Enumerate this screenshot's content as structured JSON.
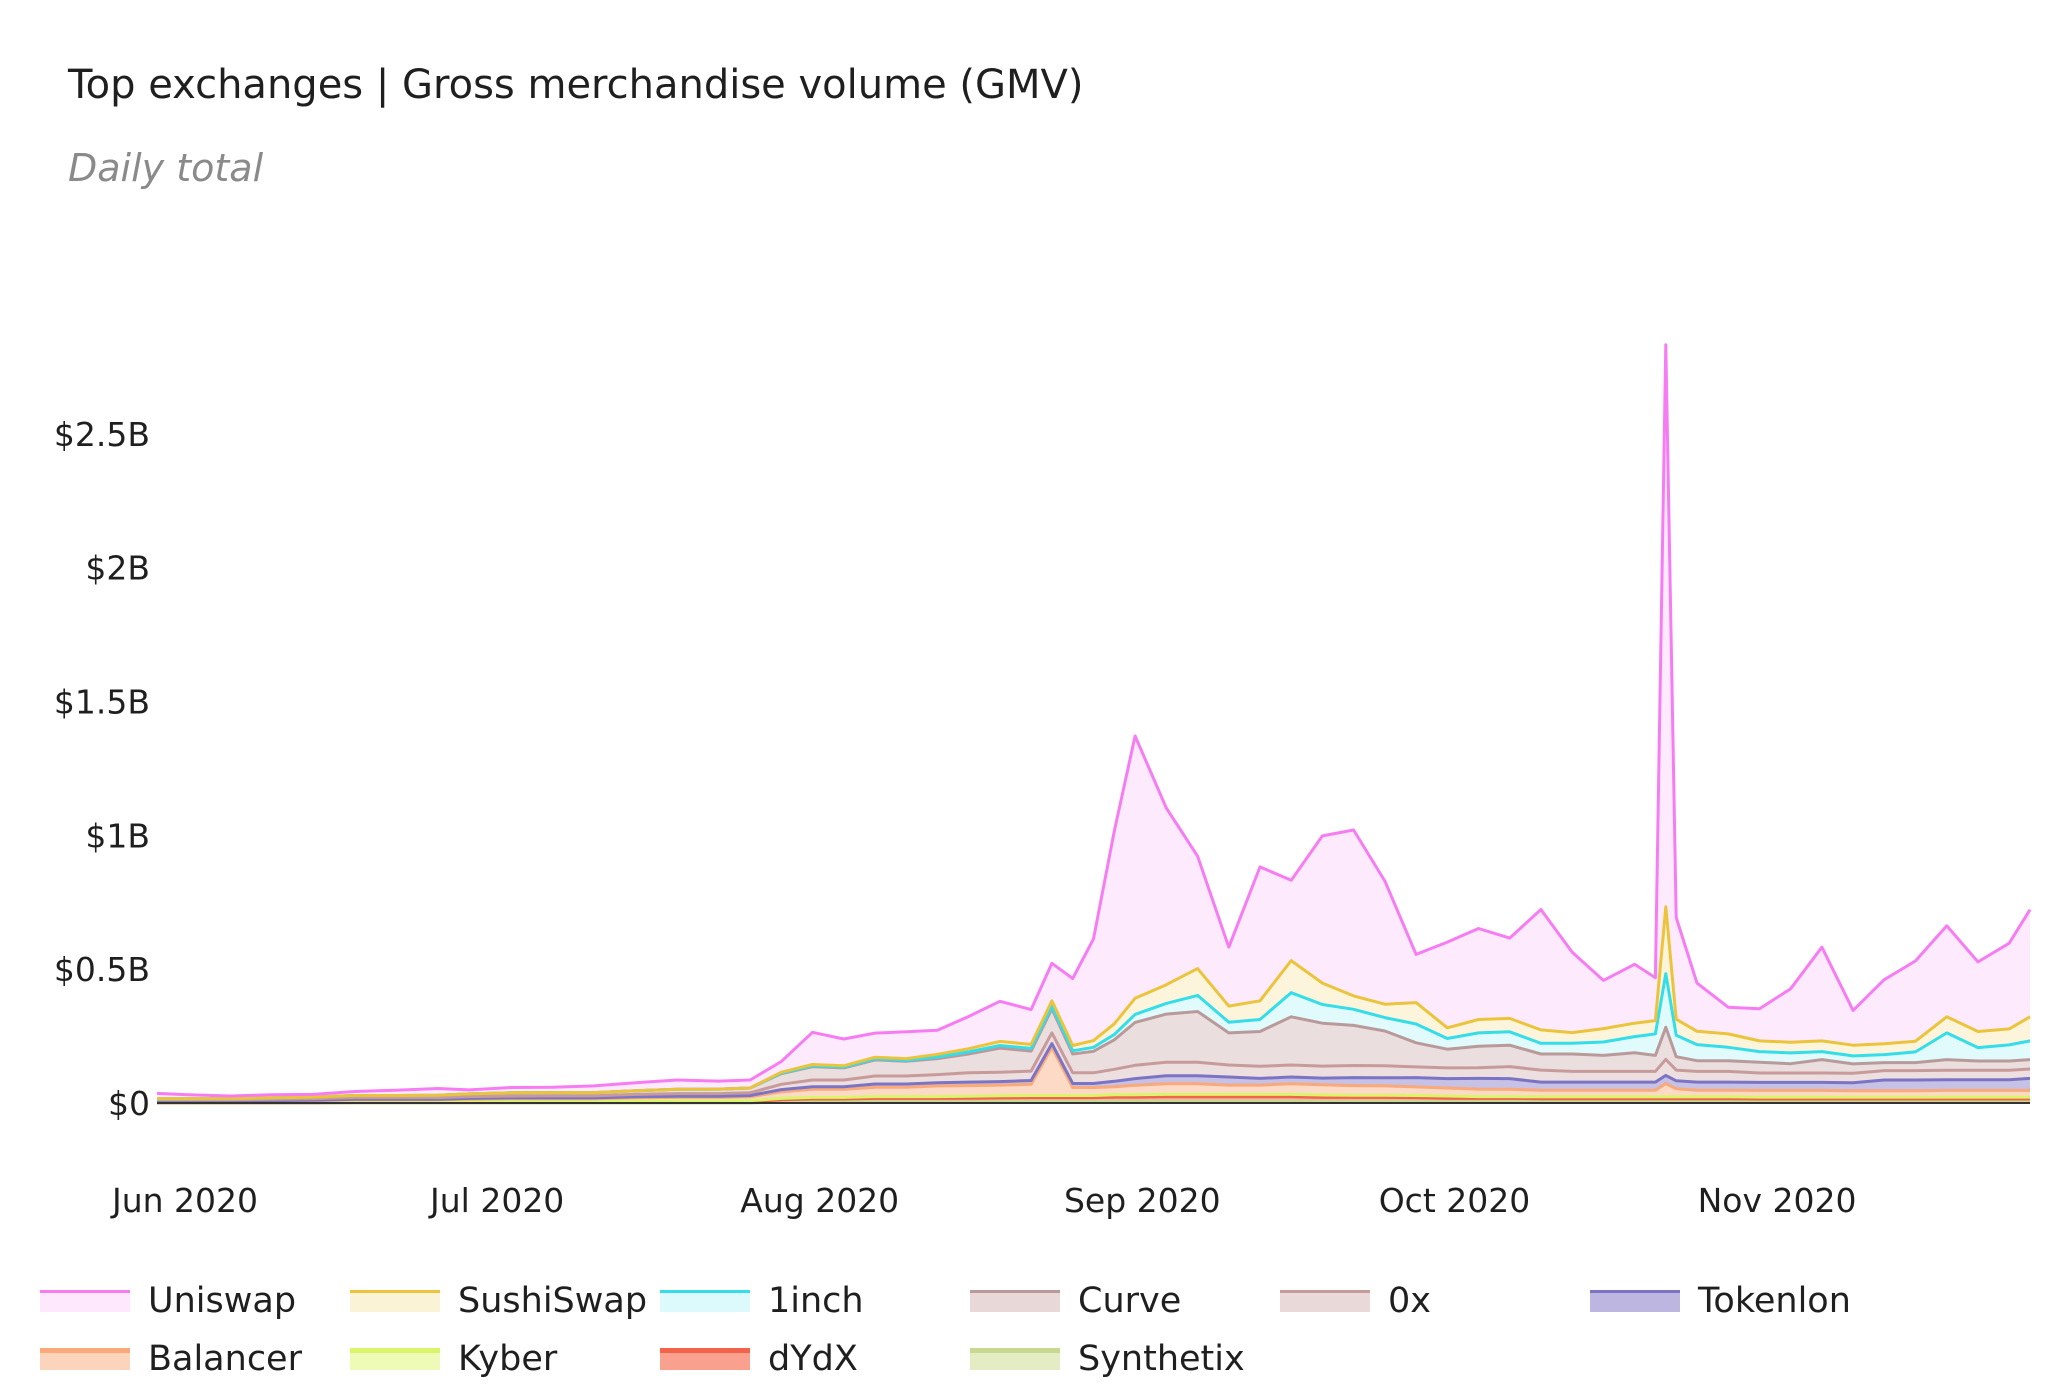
{
  "chart_data": {
    "type": "area",
    "title": "Top exchanges | Gross merchandise volume (GMV)",
    "subtitle": "Daily total",
    "xlabel": "",
    "ylabel": "",
    "x_start": "2020-06-01",
    "x_end": "2020-11-28",
    "x_ticks": [
      "Jun 2020",
      "Jul 2020",
      "Aug 2020",
      "Sep 2020",
      "Oct 2020",
      "Nov 2020"
    ],
    "y_ticks": [
      "$0",
      "$0.5B",
      "$1B",
      "$1.5B",
      "$2B",
      "$2.5B"
    ],
    "ylim": [
      0,
      3.0
    ],
    "y_unit": "$B",
    "stacked": true,
    "legend_position": "bottom",
    "grid": false,
    "dates": [
      "2020-06-01",
      "2020-06-04",
      "2020-06-08",
      "2020-06-12",
      "2020-06-16",
      "2020-06-20",
      "2020-06-24",
      "2020-06-28",
      "2020-07-01",
      "2020-07-05",
      "2020-07-09",
      "2020-07-13",
      "2020-07-17",
      "2020-07-21",
      "2020-07-25",
      "2020-07-28",
      "2020-07-31",
      "2020-08-03",
      "2020-08-06",
      "2020-08-09",
      "2020-08-12",
      "2020-08-15",
      "2020-08-18",
      "2020-08-21",
      "2020-08-24",
      "2020-08-26",
      "2020-08-28",
      "2020-08-30",
      "2020-09-01",
      "2020-09-03",
      "2020-09-06",
      "2020-09-09",
      "2020-09-12",
      "2020-09-15",
      "2020-09-18",
      "2020-09-21",
      "2020-09-24",
      "2020-09-27",
      "2020-09-30",
      "2020-10-03",
      "2020-10-06",
      "2020-10-09",
      "2020-10-12",
      "2020-10-15",
      "2020-10-18",
      "2020-10-21",
      "2020-10-23",
      "2020-10-24",
      "2020-10-25",
      "2020-10-27",
      "2020-10-30",
      "2020-11-02",
      "2020-11-05",
      "2020-11-08",
      "2020-11-11",
      "2020-11-14",
      "2020-11-17",
      "2020-11-20",
      "2020-11-23",
      "2020-11-26",
      "2020-11-28"
    ],
    "series": [
      {
        "name": "Synthetix",
        "color": "#c8d890",
        "values": [
          0,
          0,
          0,
          0,
          0,
          0,
          0,
          0,
          0,
          0,
          0,
          0,
          0,
          0,
          0,
          0,
          0.004,
          0.005,
          0.005,
          0.005,
          0.005,
          0.005,
          0.005,
          0.006,
          0.006,
          0.006,
          0.006,
          0.006,
          0.007,
          0.007,
          0.007,
          0.007,
          0.007,
          0.007,
          0.007,
          0.006,
          0.006,
          0.006,
          0.006,
          0.005,
          0.005,
          0.005,
          0.005,
          0.005,
          0.005,
          0.005,
          0.005,
          0.005,
          0.005,
          0.005,
          0.005,
          0.005,
          0.005,
          0.005,
          0.005,
          0.005,
          0.005,
          0.005,
          0.005,
          0.005,
          0.005
        ]
      },
      {
        "name": "dYdX",
        "color": "#f2634a",
        "values": [
          0.001,
          0.001,
          0.001,
          0.001,
          0.001,
          0.002,
          0.002,
          0.002,
          0.002,
          0.003,
          0.003,
          0.003,
          0.004,
          0.004,
          0.004,
          0.005,
          0.008,
          0.01,
          0.01,
          0.012,
          0.012,
          0.012,
          0.013,
          0.013,
          0.014,
          0.014,
          0.014,
          0.014,
          0.015,
          0.015,
          0.016,
          0.016,
          0.016,
          0.016,
          0.016,
          0.015,
          0.015,
          0.015,
          0.014,
          0.013,
          0.012,
          0.012,
          0.011,
          0.011,
          0.011,
          0.011,
          0.011,
          0.011,
          0.011,
          0.011,
          0.011,
          0.01,
          0.01,
          0.01,
          0.01,
          0.01,
          0.01,
          0.01,
          0.01,
          0.01,
          0.01
        ]
      },
      {
        "name": "Kyber",
        "color": "#d9f56a",
        "values": [
          0.001,
          0.001,
          0.001,
          0.001,
          0.002,
          0.002,
          0.002,
          0.002,
          0.003,
          0.003,
          0.003,
          0.003,
          0.003,
          0.004,
          0.004,
          0.004,
          0.005,
          0.006,
          0.006,
          0.007,
          0.007,
          0.007,
          0.007,
          0.008,
          0.008,
          0.008,
          0.008,
          0.008,
          0.009,
          0.009,
          0.009,
          0.009,
          0.009,
          0.009,
          0.009,
          0.009,
          0.008,
          0.008,
          0.008,
          0.008,
          0.007,
          0.007,
          0.007,
          0.007,
          0.007,
          0.007,
          0.007,
          0.007,
          0.007,
          0.007,
          0.007,
          0.007,
          0.007,
          0.007,
          0.007,
          0.007,
          0.007,
          0.007,
          0.007,
          0.007,
          0.007
        ]
      },
      {
        "name": "Balancer",
        "color": "#f9a97a",
        "values": [
          0.005,
          0.005,
          0.005,
          0.006,
          0.006,
          0.008,
          0.008,
          0.008,
          0.009,
          0.01,
          0.01,
          0.01,
          0.012,
          0.013,
          0.013,
          0.014,
          0.025,
          0.03,
          0.03,
          0.035,
          0.035,
          0.04,
          0.04,
          0.04,
          0.042,
          0.18,
          0.03,
          0.03,
          0.03,
          0.035,
          0.04,
          0.04,
          0.035,
          0.035,
          0.04,
          0.038,
          0.036,
          0.035,
          0.032,
          0.03,
          0.028,
          0.027,
          0.025,
          0.025,
          0.025,
          0.025,
          0.025,
          0.05,
          0.03,
          0.025,
          0.025,
          0.025,
          0.025,
          0.025,
          0.024,
          0.024,
          0.024,
          0.025,
          0.025,
          0.025,
          0.025
        ]
      },
      {
        "name": "Tokenlon",
        "color": "#7b74c4",
        "values": [
          0.001,
          0.001,
          0.001,
          0.001,
          0.002,
          0.002,
          0.002,
          0.002,
          0.003,
          0.003,
          0.003,
          0.003,
          0.004,
          0.004,
          0.004,
          0.005,
          0.008,
          0.01,
          0.01,
          0.012,
          0.012,
          0.012,
          0.013,
          0.013,
          0.014,
          0.014,
          0.015,
          0.015,
          0.02,
          0.025,
          0.03,
          0.03,
          0.03,
          0.025,
          0.025,
          0.025,
          0.03,
          0.03,
          0.035,
          0.035,
          0.04,
          0.04,
          0.03,
          0.03,
          0.03,
          0.03,
          0.03,
          0.03,
          0.03,
          0.03,
          0.03,
          0.03,
          0.03,
          0.03,
          0.03,
          0.04,
          0.04,
          0.04,
          0.04,
          0.04,
          0.045
        ]
      },
      {
        "name": "0x",
        "color": "#c89b9b",
        "values": [
          0.004,
          0.004,
          0.004,
          0.005,
          0.005,
          0.006,
          0.006,
          0.006,
          0.007,
          0.007,
          0.008,
          0.008,
          0.009,
          0.01,
          0.01,
          0.01,
          0.02,
          0.025,
          0.025,
          0.03,
          0.03,
          0.03,
          0.035,
          0.035,
          0.035,
          0.04,
          0.04,
          0.04,
          0.045,
          0.05,
          0.05,
          0.05,
          0.045,
          0.045,
          0.045,
          0.045,
          0.045,
          0.045,
          0.04,
          0.04,
          0.04,
          0.045,
          0.045,
          0.04,
          0.04,
          0.04,
          0.04,
          0.06,
          0.04,
          0.04,
          0.04,
          0.035,
          0.035,
          0.035,
          0.035,
          0.035,
          0.035,
          0.035,
          0.035,
          0.035,
          0.035
        ]
      },
      {
        "name": "Curve",
        "color": "#b99a9a",
        "values": [
          0.004,
          0.004,
          0.004,
          0.005,
          0.006,
          0.008,
          0.008,
          0.009,
          0.01,
          0.012,
          0.012,
          0.012,
          0.014,
          0.016,
          0.017,
          0.018,
          0.04,
          0.05,
          0.045,
          0.06,
          0.055,
          0.06,
          0.07,
          0.09,
          0.075,
          0.09,
          0.07,
          0.08,
          0.11,
          0.16,
          0.18,
          0.19,
          0.12,
          0.13,
          0.18,
          0.16,
          0.15,
          0.13,
          0.09,
          0.07,
          0.08,
          0.08,
          0.06,
          0.065,
          0.06,
          0.07,
          0.06,
          0.12,
          0.05,
          0.04,
          0.04,
          0.04,
          0.035,
          0.05,
          0.035,
          0.03,
          0.03,
          0.04,
          0.035,
          0.035,
          0.035
        ]
      },
      {
        "name": "1inch",
        "color": "#35dde8",
        "values": [
          0,
          0,
          0,
          0,
          0,
          0,
          0,
          0,
          0,
          0,
          0,
          0,
          0,
          0,
          0,
          0,
          0.002,
          0.003,
          0.003,
          0.004,
          0.004,
          0.006,
          0.008,
          0.01,
          0.01,
          0.01,
          0.012,
          0.015,
          0.02,
          0.03,
          0.04,
          0.06,
          0.04,
          0.045,
          0.09,
          0.07,
          0.06,
          0.05,
          0.07,
          0.04,
          0.05,
          0.05,
          0.04,
          0.04,
          0.05,
          0.06,
          0.08,
          0.2,
          0.08,
          0.06,
          0.05,
          0.04,
          0.04,
          0.03,
          0.03,
          0.03,
          0.04,
          0.1,
          0.05,
          0.06,
          0.07
        ]
      },
      {
        "name": "SushiSwap",
        "color": "#ebc43c",
        "values": [
          0,
          0,
          0,
          0,
          0,
          0,
          0,
          0,
          0,
          0,
          0,
          0,
          0,
          0,
          0,
          0,
          0.003,
          0.005,
          0.005,
          0.006,
          0.006,
          0.01,
          0.012,
          0.015,
          0.015,
          0.02,
          0.02,
          0.025,
          0.04,
          0.06,
          0.07,
          0.1,
          0.06,
          0.07,
          0.12,
          0.08,
          0.05,
          0.05,
          0.08,
          0.04,
          0.05,
          0.05,
          0.05,
          0.04,
          0.05,
          0.05,
          0.05,
          0.25,
          0.06,
          0.05,
          0.05,
          0.04,
          0.04,
          0.04,
          0.04,
          0.04,
          0.04,
          0.06,
          0.06,
          0.06,
          0.09
        ]
      },
      {
        "name": "Uniswap",
        "color": "#f77cf4",
        "values": [
          0.02,
          0.015,
          0.01,
          0.012,
          0.01,
          0.015,
          0.02,
          0.025,
          0.015,
          0.02,
          0.02,
          0.025,
          0.03,
          0.035,
          0.03,
          0.03,
          0.04,
          0.12,
          0.1,
          0.09,
          0.1,
          0.09,
          0.12,
          0.15,
          0.13,
          0.14,
          0.25,
          0.38,
          0.72,
          0.98,
          0.66,
          0.42,
          0.22,
          0.5,
          0.3,
          0.55,
          0.62,
          0.46,
          0.18,
          0.32,
          0.34,
          0.3,
          0.45,
          0.3,
          0.18,
          0.22,
          0.16,
          2.1,
          0.38,
          0.18,
          0.1,
          0.12,
          0.2,
          0.35,
          0.13,
          0.24,
          0.3,
          0.34,
          0.26,
          0.32,
          0.4
        ]
      }
    ]
  },
  "legend": [
    {
      "label": "Uniswap",
      "color": "#f77cf4",
      "fill": "#fde8fd",
      "style": "line"
    },
    {
      "label": "SushiSwap",
      "color": "#ebc43c",
      "fill": "#fbf3d6",
      "style": "line"
    },
    {
      "label": "1inch",
      "color": "#35dde8",
      "fill": "#dcf9fb",
      "style": "line"
    },
    {
      "label": "Curve",
      "color": "#b99a9a",
      "fill": "#e8d8d8",
      "style": "line"
    },
    {
      "label": "0x",
      "color": "#c89b9b",
      "fill": "#ead9d9",
      "style": "line"
    },
    {
      "label": "Tokenlon",
      "color": "#7b74c4",
      "fill": "#bcb6e0",
      "style": "line"
    },
    {
      "label": "Balancer",
      "color": "#f9a97a",
      "fill": "#fcd4bc",
      "style": "band"
    },
    {
      "label": "Kyber",
      "color": "#d9f56a",
      "fill": "#eefbb6",
      "style": "band"
    },
    {
      "label": "dYdX",
      "color": "#f2634a",
      "fill": "#f9a08f",
      "style": "band"
    },
    {
      "label": "Synthetix",
      "color": "#c8d890",
      "fill": "#e4ecc4",
      "style": "band"
    }
  ]
}
